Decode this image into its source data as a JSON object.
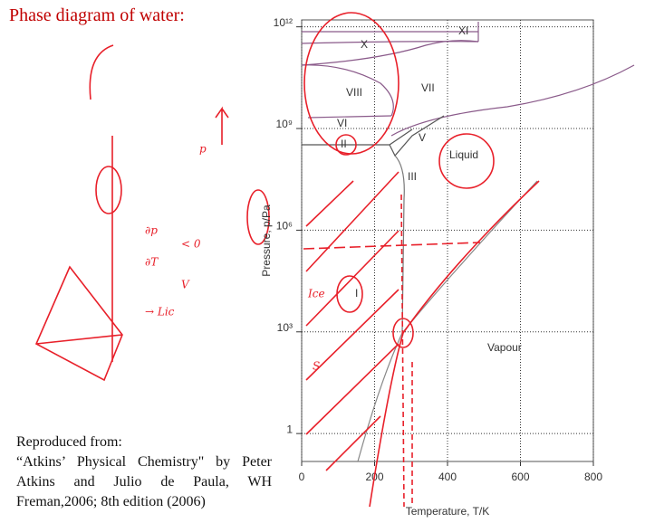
{
  "title": "Phase diagram of water:",
  "chart_data": {
    "type": "line",
    "xlabel": "Temperature, T/K",
    "ylabel": "Pressure, p/Pa",
    "xlim": [
      0,
      800
    ],
    "xticks": [
      0,
      200,
      400,
      600,
      800
    ],
    "ylim": [
      0.15,
      1600000000000
    ],
    "log_y": true,
    "yticks": [
      1,
      {
        "value": 1000,
        "label": "10³"
      },
      {
        "value": 1000000,
        "label": "10⁶"
      },
      {
        "value": 1000000000,
        "label": "10⁹"
      },
      {
        "value": 1000000000000,
        "label": "10¹²"
      }
    ],
    "grid": true,
    "regions": [
      "XI",
      "X",
      "VIII",
      "VII",
      "VI",
      "V",
      "II",
      "III",
      "Liquid",
      "I",
      "Vapour"
    ]
  },
  "handwriting": [
    "p",
    "∂p",
    "∂T",
    "V",
    "< 0",
    "Ice",
    "S",
    "→ Lic"
  ],
  "citation": {
    "heading": "Reproduced from:",
    "text": "“Atkins’ Physical Chemistry\" by Peter Atkins and Julio de Paula, WH Freman,2006; 8th edition (2006)"
  }
}
